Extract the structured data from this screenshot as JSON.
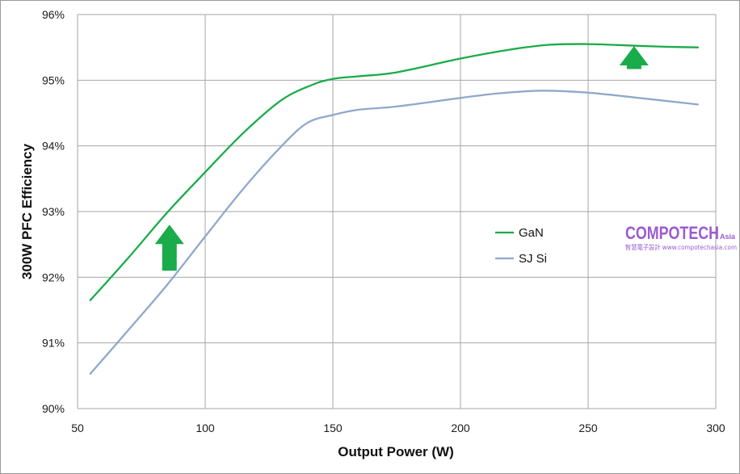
{
  "chart_data": {
    "type": "line",
    "xlabel": "Output Power (W)",
    "ylabel": "300W PFC Efficiency",
    "xlim": [
      50,
      300
    ],
    "ylim": [
      90,
      96
    ],
    "xticks": [
      50,
      100,
      150,
      200,
      250,
      300
    ],
    "yticks": [
      90,
      91,
      92,
      93,
      94,
      95,
      96
    ],
    "xtick_labels": [
      "50",
      "100",
      "150",
      "200",
      "250",
      "300"
    ],
    "ytick_labels": [
      "90%",
      "91%",
      "92%",
      "93%",
      "94%",
      "95%",
      "96%"
    ],
    "grid": true,
    "legend_position": "center-right",
    "series": [
      {
        "name": "GaN",
        "color": "#1aab4a",
        "points": [
          [
            55,
            91.65
          ],
          [
            70,
            92.3
          ],
          [
            85,
            92.98
          ],
          [
            100,
            93.6
          ],
          [
            115,
            94.2
          ],
          [
            130,
            94.7
          ],
          [
            142,
            94.93
          ],
          [
            150,
            95.02
          ],
          [
            160,
            95.06
          ],
          [
            175,
            95.12
          ],
          [
            200,
            95.33
          ],
          [
            220,
            95.47
          ],
          [
            235,
            95.54
          ],
          [
            250,
            95.55
          ],
          [
            265,
            95.53
          ],
          [
            280,
            95.51
          ],
          [
            293,
            95.5
          ]
        ]
      },
      {
        "name": "SJ Si",
        "color": "#8fa8cc",
        "points": [
          [
            55,
            90.53
          ],
          [
            70,
            91.2
          ],
          [
            85,
            91.88
          ],
          [
            100,
            92.62
          ],
          [
            115,
            93.35
          ],
          [
            130,
            94.0
          ],
          [
            140,
            94.35
          ],
          [
            150,
            94.47
          ],
          [
            160,
            94.55
          ],
          [
            175,
            94.6
          ],
          [
            200,
            94.73
          ],
          [
            215,
            94.8
          ],
          [
            232,
            94.84
          ],
          [
            250,
            94.81
          ],
          [
            270,
            94.73
          ],
          [
            293,
            94.63
          ]
        ]
      }
    ],
    "annotations": [
      {
        "type": "up-arrow",
        "color": "#1aab4a",
        "x": 86,
        "y_bottom": 92.1,
        "y_top": 92.8
      },
      {
        "type": "up-arrow",
        "color": "#1aab4a",
        "x": 268,
        "y_bottom": 95.17,
        "y_top": 95.52
      }
    ]
  },
  "watermark": {
    "main": "COMPOTECH",
    "suffix": "Asia",
    "sub": "智慧電子設計 www.compotechasia.com"
  }
}
